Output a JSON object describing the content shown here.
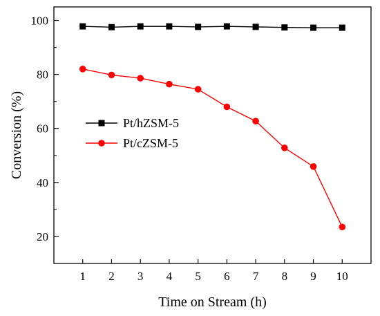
{
  "chart_data": {
    "type": "line",
    "xlabel": "Time on Stream (h)",
    "ylabel": "Conversion (%)",
    "x": [
      1,
      2,
      3,
      4,
      5,
      6,
      7,
      8,
      9,
      10
    ],
    "xlim": [
      0,
      11
    ],
    "ylim": [
      10,
      105
    ],
    "xticks": [
      1,
      2,
      3,
      4,
      5,
      6,
      7,
      8,
      9,
      10
    ],
    "yticks": [
      20,
      40,
      60,
      80,
      100
    ],
    "grid": false,
    "legend_position": "middle-left",
    "series": [
      {
        "name": "Pt/hZSM-5",
        "marker": "square",
        "color": "#000000",
        "values": [
          97.8,
          97.5,
          97.8,
          97.8,
          97.6,
          97.8,
          97.6,
          97.4,
          97.3,
          97.3
        ]
      },
      {
        "name": "Pt/cZSM-5",
        "marker": "circle",
        "color": "#ff0000",
        "values": [
          82.0,
          79.8,
          78.6,
          76.4,
          74.5,
          68.0,
          62.7,
          52.8,
          45.9,
          23.5
        ]
      }
    ]
  }
}
